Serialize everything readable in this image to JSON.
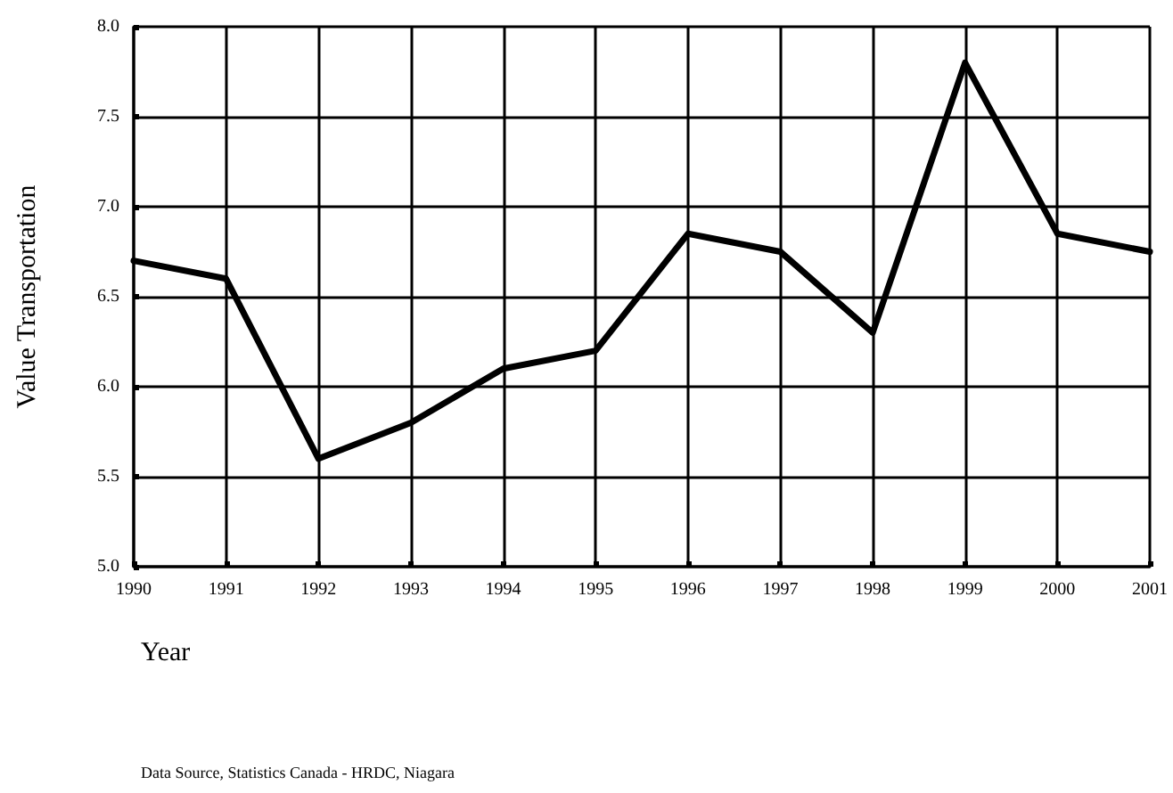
{
  "chart_data": {
    "type": "line",
    "xlabel": "Year",
    "ylabel": "Value Transportation",
    "annotations": [
      "Data Source, Statistics Canada - HRDC, Niagara"
    ],
    "categories": [
      "1990",
      "1991",
      "1992",
      "1993",
      "1994",
      "1995",
      "1996",
      "1997",
      "1998",
      "1999",
      "2000",
      "2001"
    ],
    "series": [
      {
        "color": "#000000",
        "values": [
          6.7,
          6.6,
          5.6,
          5.8,
          6.1,
          6.2,
          6.85,
          6.75,
          6.3,
          7.8,
          6.85,
          6.75
        ]
      }
    ],
    "ylim": [
      5.0,
      8.0
    ],
    "yticks": [
      {
        "value": 5.0,
        "label": "5.0"
      },
      {
        "value": 5.5,
        "label": "5.5"
      },
      {
        "value": 6.0,
        "label": "6.0"
      },
      {
        "value": 6.5,
        "label": "6.5"
      },
      {
        "value": 7.0,
        "label": "7.0"
      },
      {
        "value": 7.5,
        "label": "7.5"
      },
      {
        "value": 8.0,
        "label": "8.0"
      }
    ],
    "grid": true,
    "marker": "none",
    "line_style": "solid"
  }
}
